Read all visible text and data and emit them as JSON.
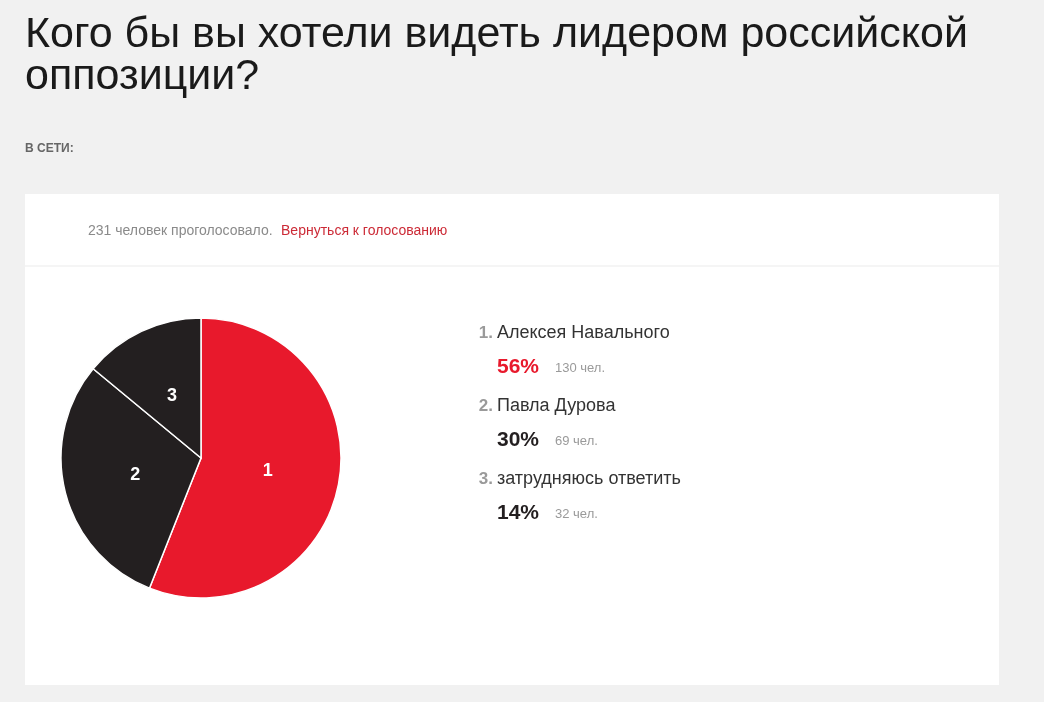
{
  "chart_data": {
    "type": "pie",
    "title": "Кого бы вы хотели видеть лидером российской оппозиции?",
    "subtitle": "В СЕТИ:",
    "categories": [
      "1",
      "2",
      "3"
    ],
    "values": [
      56,
      30,
      14
    ],
    "colors": [
      "#e8192c",
      "#231f20",
      "#231f20"
    ],
    "annotations": [
      "231 человек проголосовало.",
      "Вернуться к голосованию",
      {
        "text": "1.",
        "x": "1"
      },
      {
        "text": "Алексея Навального",
        "x": "1"
      },
      {
        "text": "56%",
        "x": "1"
      },
      {
        "text": "130 чел.",
        "x": "1"
      },
      {
        "text": "2.",
        "x": "2"
      },
      {
        "text": "Павла Дурова",
        "x": "2"
      },
      {
        "text": "30%",
        "x": "2"
      },
      {
        "text": "69 чел.",
        "x": "2"
      },
      {
        "text": "3.",
        "x": "3"
      },
      {
        "text": "затрудняюсь ответить",
        "x": "3"
      },
      {
        "text": "14%",
        "x": "3"
      },
      {
        "text": "32 чел.",
        "x": "3"
      }
    ]
  }
}
